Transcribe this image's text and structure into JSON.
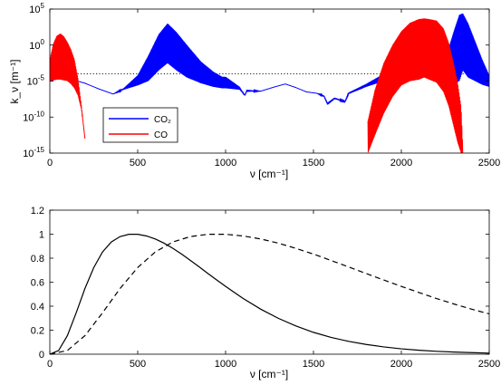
{
  "chart_data": [
    {
      "type": "line",
      "yscale": "log",
      "xlabel": "ν [cm⁻¹]",
      "ylabel": "k_ν [m⁻¹]",
      "xlim": [
        0,
        2500
      ],
      "ylim": [
        1e-15,
        100000.0
      ],
      "xticks": [
        "0",
        "500",
        "1000",
        "1500",
        "2000",
        "2500"
      ],
      "yticks": [
        {
          "base": "10",
          "exp": "-15"
        },
        {
          "base": "10",
          "exp": "-10"
        },
        {
          "base": "10",
          "exp": "-5"
        },
        {
          "base": "10",
          "exp": "0"
        },
        {
          "base": "10",
          "exp": "5"
        }
      ],
      "legend_position": "lower-left",
      "reference_line": {
        "y": 0.0001,
        "style": "dotted",
        "color": "#000000"
      },
      "series": [
        {
          "name": "CO₂",
          "color": "#0000ff",
          "envelope": {
            "x": [
              0,
              40,
              80,
              130,
              200,
              280,
              360,
              420,
              500,
              560,
              620,
              670,
              720,
              780,
              860,
              930,
              980,
              1000,
              1080,
              1110,
              1120,
              1200,
              1280,
              1340,
              1400,
              1460,
              1520,
              1560,
              1580,
              1620,
              1680,
              1700,
              1800,
              1900,
              2000,
              2100,
              2200,
              2260,
              2300,
              2330,
              2350,
              2380,
              2420,
              2460,
              2500
            ],
            "upper": [
              -5.0,
              -4.7,
              -4.5,
              -4.8,
              -5.3,
              -6.1,
              -6.8,
              -6.0,
              -4.2,
              -1.5,
              1.5,
              3.0,
              1.8,
              0.0,
              -2.3,
              -3.7,
              -4.4,
              -4.4,
              -5.8,
              -7.0,
              -6.2,
              -6.4,
              -5.8,
              -5.4,
              -5.9,
              -6.5,
              -6.7,
              -7.0,
              -8.0,
              -7.3,
              -7.8,
              -6.6,
              -5.4,
              -4.0,
              -2.8,
              -2.2,
              -1.8,
              -1.2,
              2.0,
              4.2,
              4.4,
              3.0,
              0.5,
              -2.0,
              -4.2
            ],
            "lower": [
              -5.0,
              -4.7,
              -4.5,
              -4.8,
              -5.3,
              -6.1,
              -6.8,
              -6.2,
              -5.6,
              -5.0,
              -3.5,
              -2.5,
              -3.5,
              -4.5,
              -5.3,
              -5.8,
              -6.0,
              -6.0,
              -6.2,
              -7.0,
              -6.5,
              -6.4,
              -5.8,
              -5.4,
              -5.9,
              -6.5,
              -6.7,
              -7.2,
              -8.3,
              -7.5,
              -7.9,
              -6.8,
              -5.8,
              -5.0,
              -4.4,
              -3.9,
              -4.2,
              -4.6,
              -5.3,
              -5.0,
              -3.5,
              -4.5,
              -5.0,
              -5.5,
              -5.8
            ]
          }
        },
        {
          "name": "CO",
          "color": "#ff0000",
          "envelope_a": {
            "x": [
              0,
              20,
              40,
              60,
              80,
              100,
              120,
              140,
              160,
              180,
              200
            ],
            "upper": [
              -2.0,
              0.2,
              1.3,
              1.6,
              1.2,
              0.4,
              -0.6,
              -2.0,
              -4.6,
              -8.5,
              -13.0
            ],
            "lower": [
              -5.0,
              -4.9,
              -4.8,
              -4.8,
              -4.9,
              -5.0,
              -5.4,
              -6.0,
              -7.0,
              -9.0,
              -13.0
            ]
          },
          "envelope_b": {
            "x": [
              1810,
              1850,
              1900,
              1950,
              2000,
              2050,
              2100,
              2130,
              2160,
              2200,
              2240,
              2270,
              2300,
              2320,
              2340,
              2350
            ],
            "upper": [
              -10.5,
              -6.2,
              -2.5,
              0.0,
              1.9,
              3.1,
              3.6,
              3.7,
              3.6,
              3.4,
              2.3,
              0.3,
              -2.8,
              -5.2,
              -8.6,
              -14.5
            ],
            "lower": [
              -15.0,
              -12.5,
              -9.5,
              -7.2,
              -5.6,
              -5.0,
              -4.8,
              -4.5,
              -4.8,
              -5.2,
              -6.5,
              -8.5,
              -11.5,
              -13.5,
              -15.0,
              -15.0
            ]
          }
        }
      ]
    },
    {
      "type": "line",
      "xlabel": "ν [cm⁻¹]",
      "xlim": [
        0,
        2500
      ],
      "ylim": [
        0,
        1.2
      ],
      "xticks": [
        "0",
        "500",
        "1000",
        "1500",
        "2000",
        "2500"
      ],
      "yticks": [
        "0",
        "0.2",
        "0.4",
        "0.6",
        "0.8",
        "1",
        "1.2"
      ],
      "series": [
        {
          "style": "solid",
          "color": "#000000",
          "x": [
            0,
            50,
            100,
            150,
            200,
            250,
            300,
            350,
            400,
            450,
            500,
            550,
            600,
            650,
            700,
            750,
            800,
            850,
            900,
            950,
            1000,
            1100,
            1200,
            1300,
            1400,
            1500,
            1600,
            1700,
            1800,
            1900,
            2000,
            2100,
            2200,
            2300,
            2400,
            2500
          ],
          "y": [
            0,
            0.031,
            0.155,
            0.345,
            0.548,
            0.722,
            0.852,
            0.935,
            0.98,
            0.999,
            0.999,
            0.985,
            0.96,
            0.925,
            0.882,
            0.834,
            0.781,
            0.727,
            0.672,
            0.618,
            0.565,
            0.464,
            0.375,
            0.299,
            0.235,
            0.182,
            0.14,
            0.107,
            0.081,
            0.061,
            0.045,
            0.033,
            0.024,
            0.018,
            0.013,
            0.009
          ]
        },
        {
          "style": "dashed",
          "color": "#000000",
          "x": [
            0,
            100,
            200,
            300,
            400,
            500,
            600,
            700,
            800,
            900,
            1000,
            1100,
            1200,
            1300,
            1400,
            1500,
            1600,
            1700,
            1800,
            1900,
            2000,
            2100,
            2200,
            2300,
            2400,
            2500
          ],
          "y": [
            0,
            0.031,
            0.155,
            0.345,
            0.548,
            0.722,
            0.852,
            0.935,
            0.98,
            0.999,
            0.999,
            0.985,
            0.96,
            0.925,
            0.882,
            0.834,
            0.781,
            0.727,
            0.672,
            0.618,
            0.565,
            0.514,
            0.464,
            0.418,
            0.375,
            0.336
          ]
        }
      ]
    }
  ]
}
